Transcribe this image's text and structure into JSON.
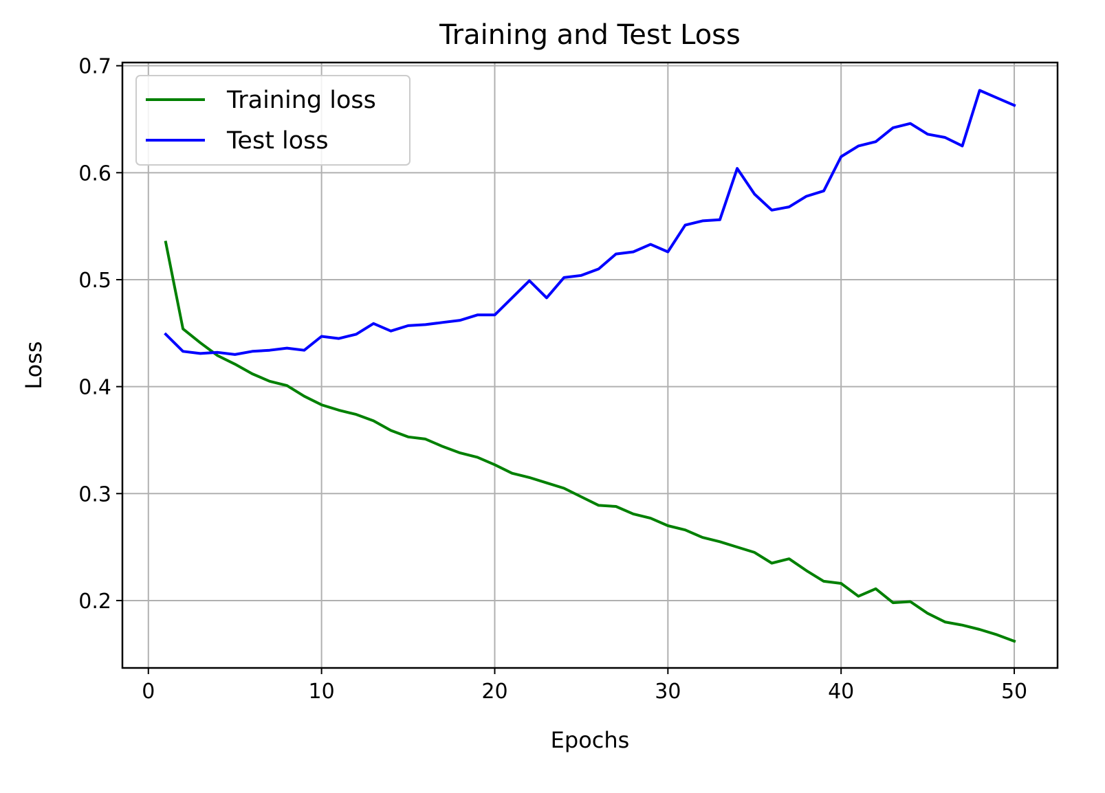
{
  "chart_data": {
    "type": "line",
    "title": "Training and Test Loss",
    "xlabel": "Epochs",
    "ylabel": "Loss",
    "xlim": [
      -1.5,
      52.5
    ],
    "ylim": [
      0.137,
      0.703
    ],
    "xticks": [
      0,
      10,
      20,
      30,
      40,
      50
    ],
    "yticks": [
      0.2,
      0.3,
      0.4,
      0.5,
      0.6,
      0.7
    ],
    "xtick_labels": [
      "0",
      "10",
      "20",
      "30",
      "40",
      "50"
    ],
    "ytick_labels": [
      "0.2",
      "0.3",
      "0.4",
      "0.5",
      "0.6",
      "0.7"
    ],
    "grid": true,
    "legend_position": "top-left",
    "x": [
      1,
      2,
      3,
      4,
      5,
      6,
      7,
      8,
      9,
      10,
      11,
      12,
      13,
      14,
      15,
      16,
      17,
      18,
      19,
      20,
      21,
      22,
      23,
      24,
      25,
      26,
      27,
      28,
      29,
      30,
      31,
      32,
      33,
      34,
      35,
      36,
      37,
      38,
      39,
      40,
      41,
      42,
      43,
      44,
      45,
      46,
      47,
      48,
      49,
      50
    ],
    "series": [
      {
        "name": "Training loss",
        "color": "#008000",
        "values": [
          0.535,
          0.454,
          0.441,
          0.429,
          0.421,
          0.412,
          0.405,
          0.401,
          0.391,
          0.383,
          0.378,
          0.374,
          0.368,
          0.359,
          0.353,
          0.351,
          0.344,
          0.338,
          0.334,
          0.327,
          0.319,
          0.315,
          0.31,
          0.305,
          0.297,
          0.289,
          0.288,
          0.281,
          0.277,
          0.27,
          0.266,
          0.259,
          0.255,
          0.25,
          0.245,
          0.235,
          0.239,
          0.228,
          0.218,
          0.216,
          0.204,
          0.211,
          0.198,
          0.199,
          0.188,
          0.18,
          0.177,
          0.173,
          0.168,
          0.162
        ]
      },
      {
        "name": "Test loss",
        "color": "#0000ff",
        "values": [
          0.449,
          0.433,
          0.431,
          0.432,
          0.43,
          0.433,
          0.434,
          0.436,
          0.434,
          0.447,
          0.445,
          0.449,
          0.459,
          0.452,
          0.457,
          0.458,
          0.46,
          0.462,
          0.467,
          0.467,
          0.483,
          0.499,
          0.483,
          0.502,
          0.504,
          0.51,
          0.524,
          0.526,
          0.533,
          0.526,
          0.551,
          0.555,
          0.556,
          0.604,
          0.58,
          0.565,
          0.568,
          0.578,
          0.583,
          0.615,
          0.625,
          0.629,
          0.642,
          0.646,
          0.636,
          0.633,
          0.625,
          0.677,
          0.67,
          0.663
        ]
      }
    ]
  }
}
